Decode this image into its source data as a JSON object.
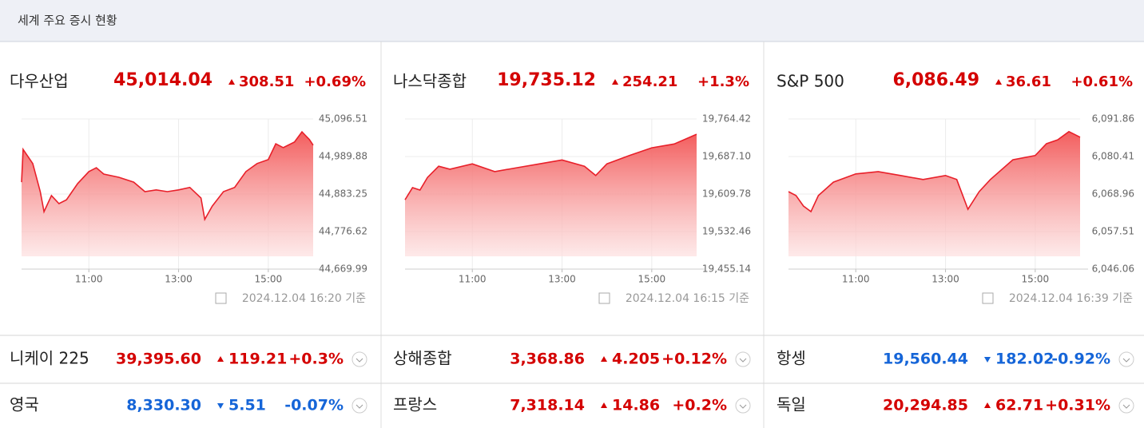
{
  "header": {
    "title": "세계 주요 증시 현황"
  },
  "chart_data": [
    {
      "type": "area",
      "title": "다우산업",
      "price": "45,014.04",
      "direction": "up",
      "change": "308.51",
      "change_pct": "+0.69%",
      "timestamp": "2024.12.04 16:20 기준",
      "color": "#e8202a",
      "x": [
        "09:30",
        "09:32",
        "09:45",
        "09:55",
        "10:00",
        "10:10",
        "10:20",
        "10:30",
        "10:45",
        "11:00",
        "11:10",
        "11:20",
        "11:40",
        "12:00",
        "12:15",
        "12:30",
        "12:45",
        "13:00",
        "13:15",
        "13:30",
        "13:35",
        "13:45",
        "14:00",
        "14:15",
        "14:30",
        "14:45",
        "15:00",
        "15:10",
        "15:20",
        "15:35",
        "15:45",
        "15:55",
        "16:00"
      ],
      "values": [
        44917,
        45010,
        44970,
        44890,
        44833,
        44879,
        44856,
        44867,
        44913,
        44947,
        44958,
        44940,
        44931,
        44917,
        44890,
        44895,
        44890,
        44895,
        44902,
        44872,
        44811,
        44849,
        44890,
        44902,
        44947,
        44970,
        44981,
        45026,
        45015,
        45031,
        45060,
        45038,
        45022
      ],
      "xlim": [
        "09:30",
        "16:00"
      ],
      "xticks": [
        "11:00",
        "13:00",
        "15:00"
      ],
      "ylim": [
        44669.99,
        45096.51
      ],
      "yticks": [
        {
          "value": 44669.99,
          "label": "44,669.99"
        },
        {
          "value": 44776.62,
          "label": "44,776.62"
        },
        {
          "value": 44883.25,
          "label": "44,883.25"
        },
        {
          "value": 44989.88,
          "label": "44,989.88"
        },
        {
          "value": 45096.51,
          "label": "45,096.51"
        }
      ],
      "grid": true
    },
    {
      "type": "area",
      "title": "나스닥종합",
      "price": "19,735.12",
      "direction": "up",
      "change": "254.21",
      "change_pct": "+1.3%",
      "timestamp": "2024.12.04 16:15 기준",
      "color": "#e8202a",
      "x": [
        "09:30",
        "09:40",
        "09:50",
        "10:00",
        "10:15",
        "10:30",
        "11:00",
        "11:30",
        "12:00",
        "12:30",
        "13:00",
        "13:30",
        "13:45",
        "14:00",
        "14:30",
        "15:00",
        "15:30",
        "16:00"
      ],
      "values": [
        19598,
        19623,
        19618,
        19644,
        19667,
        19661,
        19672,
        19656,
        19664,
        19672,
        19680,
        19667,
        19648,
        19672,
        19689,
        19705,
        19713,
        19733
      ],
      "xlim": [
        "09:30",
        "16:00"
      ],
      "xticks": [
        "11:00",
        "13:00",
        "15:00"
      ],
      "ylim": [
        19455.14,
        19764.42
      ],
      "yticks": [
        {
          "value": 19455.14,
          "label": "19,455.14"
        },
        {
          "value": 19532.46,
          "label": "19,532.46"
        },
        {
          "value": 19609.78,
          "label": "19,609.78"
        },
        {
          "value": 19687.1,
          "label": "19,687.10"
        },
        {
          "value": 19764.42,
          "label": "19,764.42"
        }
      ],
      "grid": true
    },
    {
      "type": "area",
      "title": "S&P 500",
      "price": "6,086.49",
      "direction": "up",
      "change": "36.61",
      "change_pct": "+0.61%",
      "timestamp": "2024.12.04 16:39 기준",
      "color": "#e8202a",
      "x": [
        "09:30",
        "09:40",
        "09:50",
        "10:00",
        "10:10",
        "10:30",
        "11:00",
        "11:30",
        "12:00",
        "12:30",
        "13:00",
        "13:15",
        "13:30",
        "13:45",
        "14:00",
        "14:30",
        "15:00",
        "15:15",
        "15:30",
        "15:45",
        "16:00"
      ],
      "values": [
        6069.7,
        6068.5,
        6065.3,
        6063.6,
        6068.5,
        6072.6,
        6075.1,
        6075.8,
        6074.6,
        6073.4,
        6074.6,
        6073.4,
        6064.3,
        6069.7,
        6073.4,
        6079.4,
        6080.7,
        6084.3,
        6085.5,
        6088.0,
        6086.3
      ],
      "xlim": [
        "09:30",
        "16:00"
      ],
      "xticks": [
        "11:00",
        "13:00",
        "15:00"
      ],
      "ylim": [
        6046.06,
        6091.86
      ],
      "yticks": [
        {
          "value": 6046.06,
          "label": "6,046.06"
        },
        {
          "value": 6057.51,
          "label": "6,057.51"
        },
        {
          "value": 6068.96,
          "label": "6,068.96"
        },
        {
          "value": 6080.41,
          "label": "6,080.41"
        },
        {
          "value": 6091.86,
          "label": "6,091.86"
        }
      ],
      "grid": true
    }
  ],
  "markets": {
    "rows": [
      [
        {
          "name": "니케이 225",
          "price": "39,395.60",
          "direction": "up",
          "change": "119.21",
          "change_pct": "+0.3%"
        },
        {
          "name": "상해종합",
          "price": "3,368.86",
          "direction": "up",
          "change": "4.205",
          "change_pct": "+0.12%"
        },
        {
          "name": "항셍",
          "price": "19,560.44",
          "direction": "down",
          "change": "182.02",
          "change_pct": "-0.92%"
        }
      ],
      [
        {
          "name": "영국",
          "price": "8,330.30",
          "direction": "down",
          "change": "5.51",
          "change_pct": "-0.07%"
        },
        {
          "name": "프랑스",
          "price": "7,318.14",
          "direction": "up",
          "change": "14.86",
          "change_pct": "+0.2%"
        },
        {
          "name": "독일",
          "price": "20,294.85",
          "direction": "up",
          "change": "62.71",
          "change_pct": "+0.31%"
        }
      ]
    ]
  }
}
